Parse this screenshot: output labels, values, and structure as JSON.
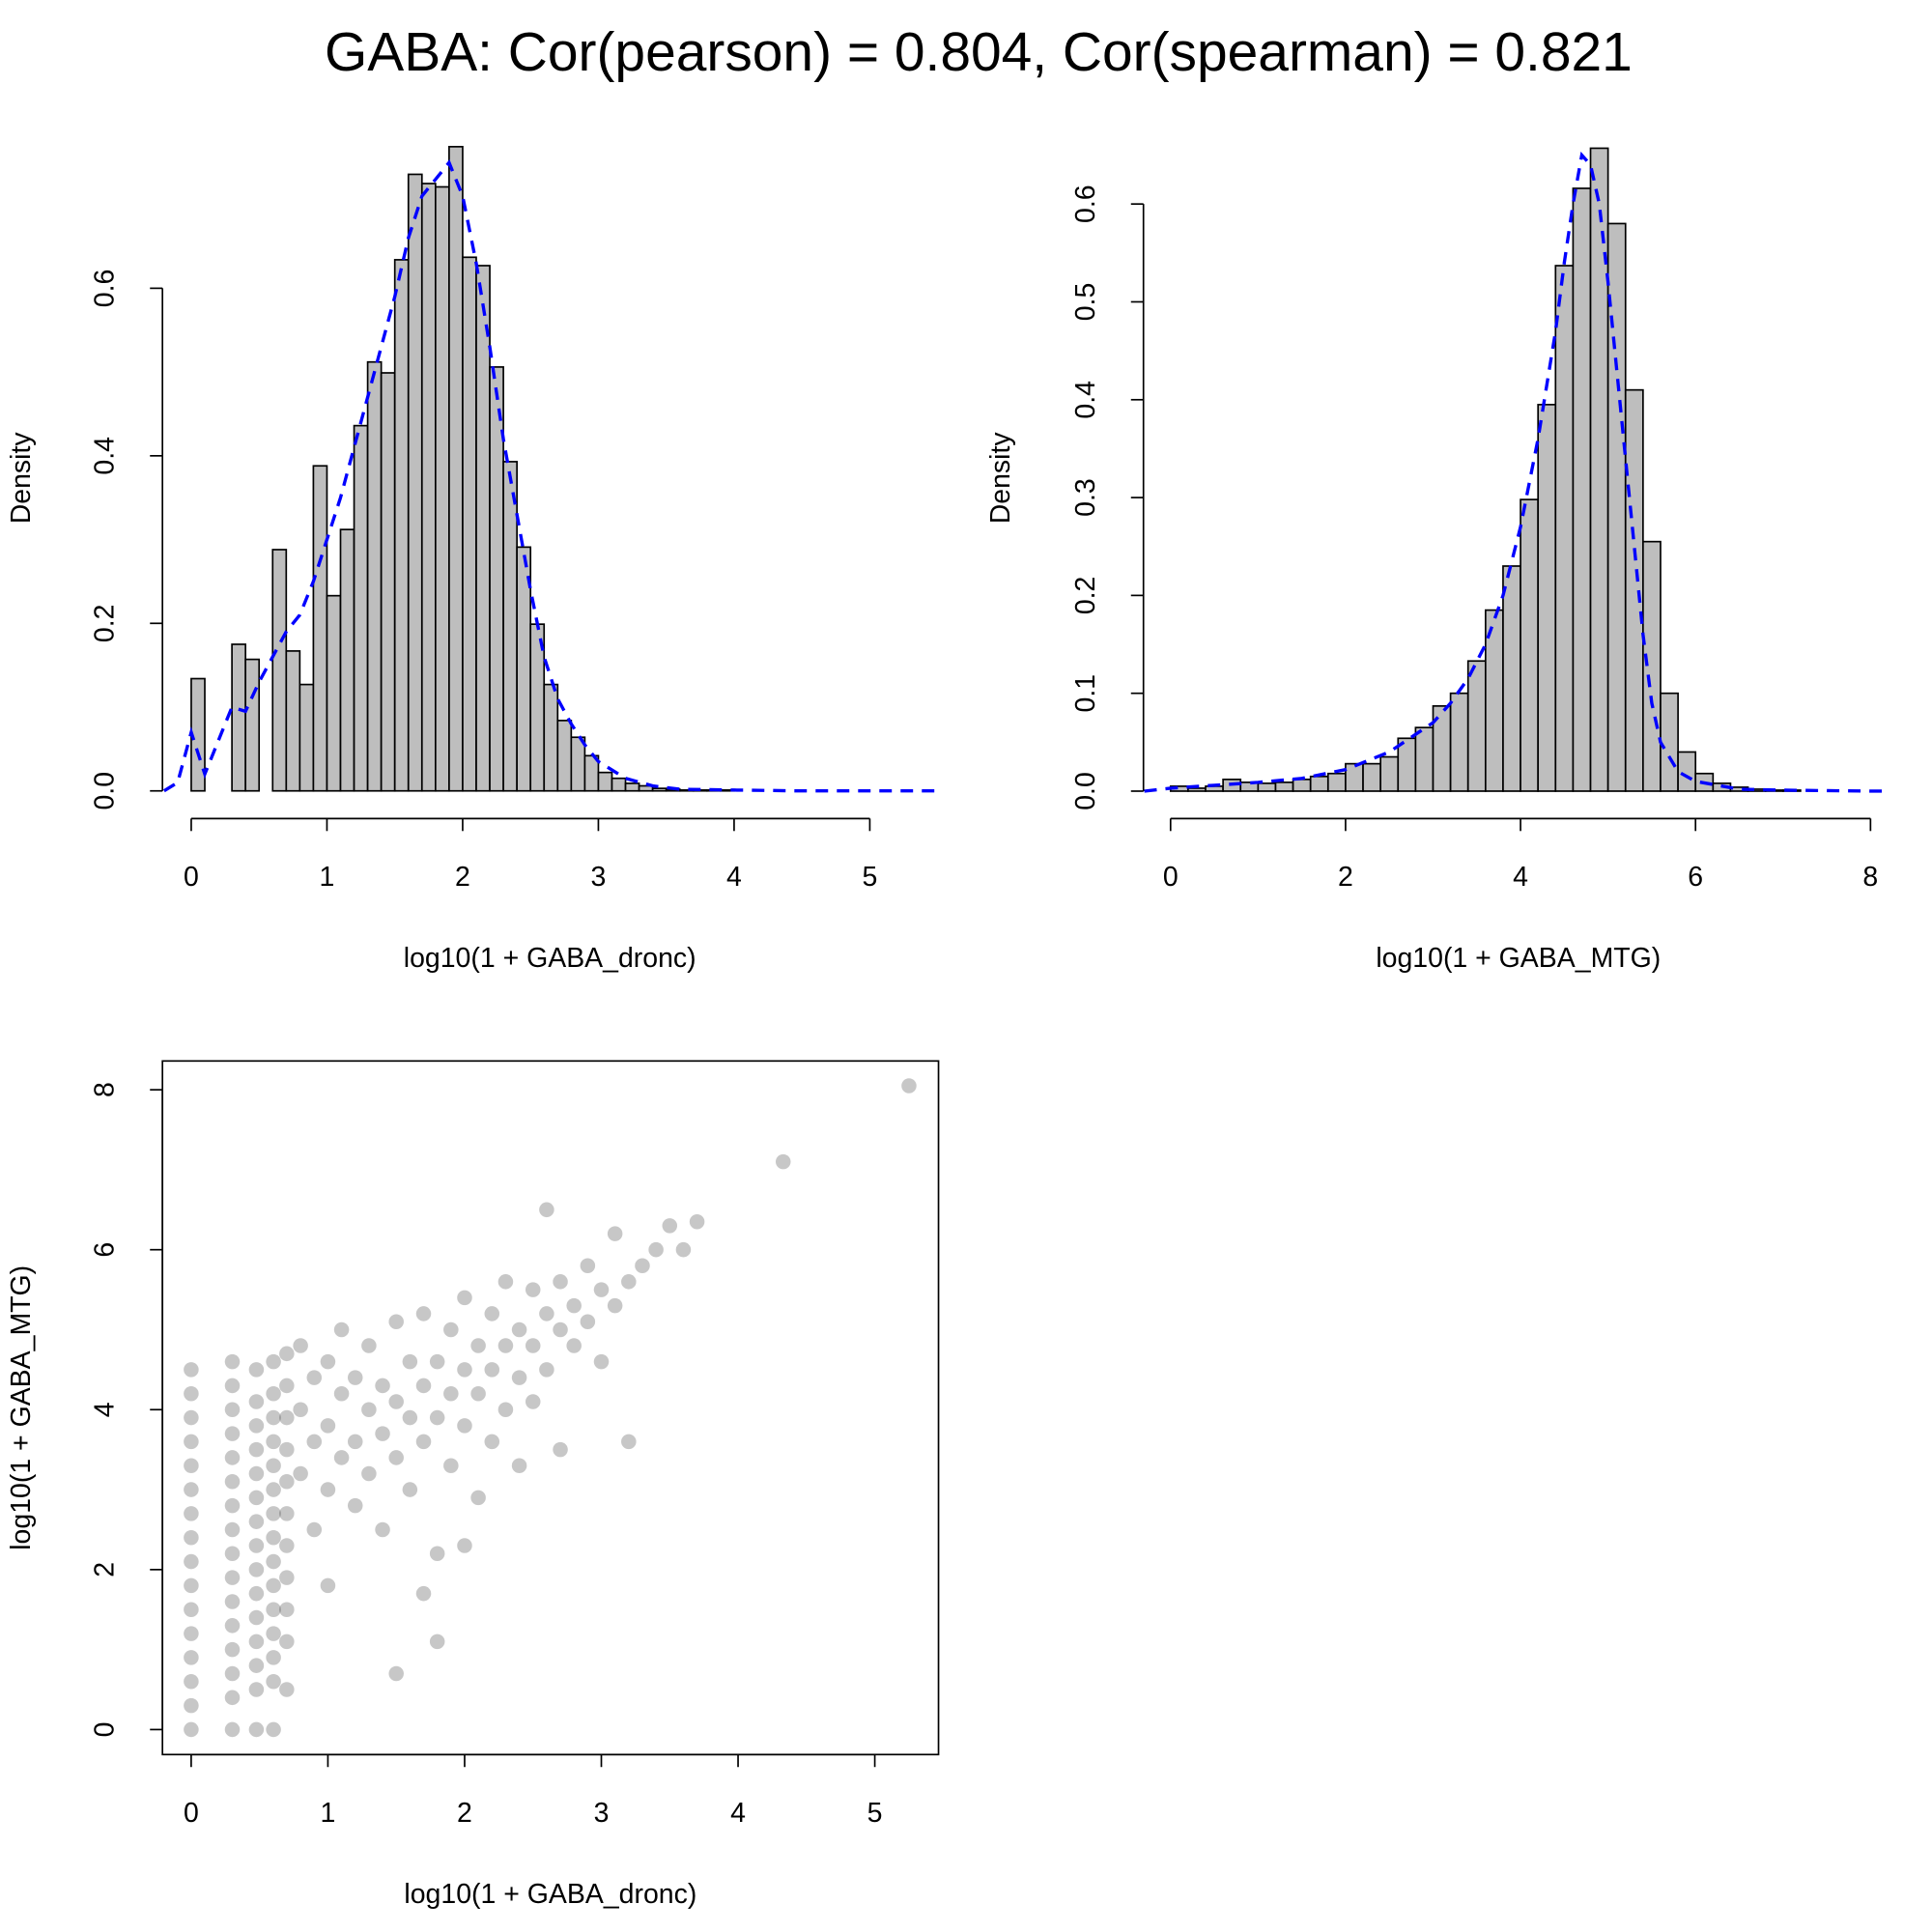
{
  "title": "GABA: Cor(pearson) = 0.804, Cor(spearman) = 0.821",
  "chart_data": [
    {
      "type": "histogram",
      "xlabel": "log10(1 + GABA_dronc)",
      "ylabel": "Density",
      "color": "#bebebe",
      "bins": [
        0,
        0.1,
        0.2,
        0.3,
        0.4,
        0.5,
        0.6,
        0.7,
        0.8,
        0.9,
        1.0,
        1.1,
        1.2,
        1.3,
        1.4,
        1.5,
        1.6,
        1.7,
        1.8,
        1.9,
        2.0,
        2.1,
        2.2,
        2.3,
        2.4,
        2.5,
        2.6,
        2.7,
        2.8,
        2.9,
        3.0,
        3.1,
        3.2,
        3.3,
        3.4,
        3.5,
        3.6,
        3.7,
        3.8,
        3.9,
        4.0
      ],
      "values": [
        0.134,
        0,
        0,
        0.175,
        0.157,
        0,
        0.288,
        0.167,
        0.127,
        0.388,
        0.233,
        0.312,
        0.436,
        0.512,
        0.499,
        0.634,
        0.736,
        0.725,
        0.721,
        0.769,
        0.637,
        0.627,
        0.506,
        0.393,
        0.291,
        0.199,
        0.127,
        0.084,
        0.064,
        0.042,
        0.022,
        0.015,
        0.009,
        0.006,
        0.003,
        0.002,
        0.001,
        0.001,
        0.001,
        0.001
      ],
      "density": {
        "color": "#0000ff",
        "x": [
          -0.2,
          -0.1,
          0,
          0.1,
          0.2,
          0.3,
          0.4,
          0.5,
          0.6,
          0.7,
          0.8,
          0.9,
          1.0,
          1.1,
          1.2,
          1.3,
          1.4,
          1.5,
          1.6,
          1.7,
          1.8,
          1.9,
          2.0,
          2.1,
          2.2,
          2.3,
          2.4,
          2.5,
          2.6,
          2.7,
          2.8,
          2.9,
          3.0,
          3.2,
          3.4,
          3.6,
          4.0,
          4.5,
          5.0,
          5.5
        ],
        "values": [
          0,
          0.01,
          0.07,
          0.02,
          0.06,
          0.1,
          0.095,
          0.13,
          0.16,
          0.19,
          0.21,
          0.25,
          0.3,
          0.35,
          0.41,
          0.47,
          0.53,
          0.59,
          0.66,
          0.71,
          0.73,
          0.75,
          0.71,
          0.63,
          0.53,
          0.42,
          0.33,
          0.24,
          0.16,
          0.11,
          0.08,
          0.055,
          0.035,
          0.015,
          0.006,
          0.002,
          0.001,
          0,
          0,
          0
        ]
      },
      "xlim": [
        -0.212,
        5.497
      ],
      "ylim": [
        -0.033,
        0.78
      ],
      "xticks": [
        0,
        1,
        2,
        3,
        4,
        5
      ],
      "yticks": [
        {
          "value": 0,
          "label": "0.0"
        },
        0.2,
        0.4,
        0.6
      ]
    },
    {
      "type": "histogram",
      "xlabel": "log10(1 + GABA_MTG)",
      "ylabel": "Density",
      "color": "#bebebe",
      "bins": [
        0,
        0.2,
        0.4,
        0.6,
        0.8,
        1.0,
        1.2,
        1.4,
        1.6,
        1.8,
        2.0,
        2.2,
        2.4,
        2.6,
        2.8,
        3.0,
        3.2,
        3.4,
        3.6,
        3.8,
        4.0,
        4.2,
        4.4,
        4.6,
        4.8,
        5.0,
        5.2,
        5.4,
        5.6,
        5.8,
        6.0,
        6.2,
        6.4,
        6.6,
        6.8,
        7.0,
        7.2
      ],
      "values": [
        0.005,
        0.003,
        0.005,
        0.012,
        0.009,
        0.008,
        0.009,
        0.012,
        0.015,
        0.018,
        0.028,
        0.028,
        0.035,
        0.054,
        0.065,
        0.087,
        0.1,
        0.133,
        0.185,
        0.23,
        0.298,
        0.395,
        0.537,
        0.616,
        0.657,
        0.58,
        0.41,
        0.255,
        0.1,
        0.04,
        0.018,
        0.008,
        0.004,
        0.002,
        0.001,
        0.001
      ],
      "density": {
        "color": "#0000ff",
        "x": [
          -0.3,
          0,
          0.5,
          1,
          1.5,
          2,
          2.5,
          3,
          3.2,
          3.4,
          3.6,
          3.8,
          4.0,
          4.2,
          4.4,
          4.5,
          4.6,
          4.7,
          4.8,
          4.9,
          5.0,
          5.1,
          5.2,
          5.3,
          5.4,
          5.5,
          5.6,
          5.8,
          6,
          6.5,
          7,
          8,
          8.2
        ],
        "values": [
          0,
          0.003,
          0.006,
          0.009,
          0.013,
          0.022,
          0.04,
          0.07,
          0.09,
          0.115,
          0.15,
          0.2,
          0.27,
          0.36,
          0.47,
          0.54,
          0.6,
          0.65,
          0.64,
          0.6,
          0.52,
          0.43,
          0.34,
          0.25,
          0.16,
          0.09,
          0.05,
          0.02,
          0.01,
          0.002,
          0.001,
          0,
          0
        ]
      },
      "xlim": [
        -0.31,
        8.26
      ],
      "ylim": [
        -0.028,
        0.668
      ],
      "xticks": [
        0,
        2,
        4,
        6,
        8
      ],
      "yticks": [
        {
          "value": 0,
          "label": "0.0"
        },
        0.1,
        0.2,
        0.3,
        0.4,
        0.5,
        0.6
      ]
    },
    {
      "type": "scatter",
      "xlabel": "log10(1 + GABA_dronc)",
      "ylabel": "log10(1 + GABA_MTG)",
      "color": "#000000",
      "x": [
        0,
        0,
        0,
        0,
        0,
        0,
        0,
        0,
        0,
        0,
        0,
        0,
        0,
        0,
        0,
        0,
        0.301,
        0.301,
        0.301,
        0.301,
        0.301,
        0.301,
        0.301,
        0.301,
        0.301,
        0.301,
        0.301,
        0.301,
        0.301,
        0.301,
        0.301,
        0.301,
        0.477,
        0.477,
        0.477,
        0.477,
        0.477,
        0.477,
        0.477,
        0.477,
        0.477,
        0.477,
        0.477,
        0.477,
        0.477,
        0.477,
        0.477,
        0.602,
        0.602,
        0.602,
        0.602,
        0.602,
        0.602,
        0.602,
        0.602,
        0.602,
        0.602,
        0.602,
        0.602,
        0.602,
        0.602,
        0.602,
        0.699,
        0.699,
        0.699,
        0.699,
        0.699,
        0.699,
        0.699,
        0.699,
        0.699,
        0.699,
        0.699,
        0.8,
        0.8,
        0.8,
        0.9,
        0.9,
        0.9,
        1.0,
        1.0,
        1.0,
        1.0,
        1.1,
        1.1,
        1.1,
        1.2,
        1.2,
        1.2,
        1.3,
        1.3,
        1.3,
        1.4,
        1.4,
        1.4,
        1.5,
        1.5,
        1.5,
        1.6,
        1.6,
        1.6,
        1.7,
        1.7,
        1.7,
        1.8,
        1.8,
        1.8,
        1.9,
        1.9,
        1.9,
        2.0,
        2.0,
        2.0,
        2.1,
        2.1,
        2.1,
        2.2,
        2.2,
        2.2,
        2.3,
        2.3,
        2.3,
        2.4,
        2.4,
        2.4,
        2.5,
        2.5,
        2.5,
        2.6,
        2.6,
        2.6,
        2.7,
        2.7,
        2.7,
        2.8,
        2.8,
        2.9,
        2.9,
        3.0,
        3.0,
        3.1,
        3.1,
        3.2,
        3.3,
        3.4,
        3.5,
        3.6,
        3.7,
        4.33,
        5.25,
        1.5,
        1.8,
        1.7,
        3.2,
        2.0
      ],
      "values": [
        4.5,
        4.2,
        3.9,
        3.6,
        3.3,
        3.0,
        2.7,
        2.4,
        2.1,
        1.8,
        1.5,
        1.2,
        0.9,
        0.6,
        0.3,
        0,
        4.6,
        4.3,
        4.0,
        3.7,
        3.4,
        3.1,
        2.8,
        2.5,
        2.2,
        1.9,
        1.6,
        1.3,
        1.0,
        0.7,
        0.4,
        0,
        4.5,
        4.1,
        3.8,
        3.5,
        3.2,
        2.9,
        2.6,
        2.3,
        2.0,
        1.7,
        1.4,
        1.1,
        0.8,
        0.5,
        0,
        4.6,
        4.2,
        3.9,
        3.6,
        3.3,
        3.0,
        2.7,
        2.4,
        2.1,
        1.8,
        1.5,
        1.2,
        0.9,
        0.6,
        0,
        4.7,
        4.3,
        3.9,
        3.5,
        3.1,
        2.7,
        2.3,
        1.9,
        1.5,
        1.1,
        0.5,
        3.2,
        4.0,
        4.8,
        2.5,
        3.6,
        4.4,
        3.0,
        3.8,
        4.6,
        1.8,
        3.4,
        4.2,
        5.0,
        2.8,
        3.6,
        4.4,
        3.2,
        4.0,
        4.8,
        2.5,
        3.7,
        4.3,
        3.4,
        4.1,
        5.1,
        3.0,
        3.9,
        4.6,
        3.6,
        4.3,
        5.2,
        2.2,
        3.9,
        4.6,
        3.3,
        4.2,
        5.0,
        3.8,
        4.5,
        5.4,
        2.9,
        4.2,
        4.8,
        3.6,
        4.5,
        5.2,
        4.0,
        4.8,
        5.6,
        3.3,
        4.4,
        5.0,
        4.1,
        4.8,
        5.5,
        4.5,
        5.2,
        6.5,
        3.5,
        5.0,
        5.6,
        4.8,
        5.3,
        5.1,
        5.8,
        4.6,
        5.5,
        5.3,
        6.2,
        5.6,
        5.8,
        6.0,
        6.3,
        6.0,
        6.35,
        7.1,
        8.05,
        0.7,
        1.1,
        1.7,
        3.6,
        2.3
      ],
      "xlim": [
        -0.21,
        5.466
      ],
      "ylim": [
        -0.3125,
        8.36
      ],
      "xticks": [
        0,
        1,
        2,
        3,
        4,
        5
      ],
      "yticks": [
        0,
        2,
        4,
        6,
        8
      ]
    }
  ]
}
